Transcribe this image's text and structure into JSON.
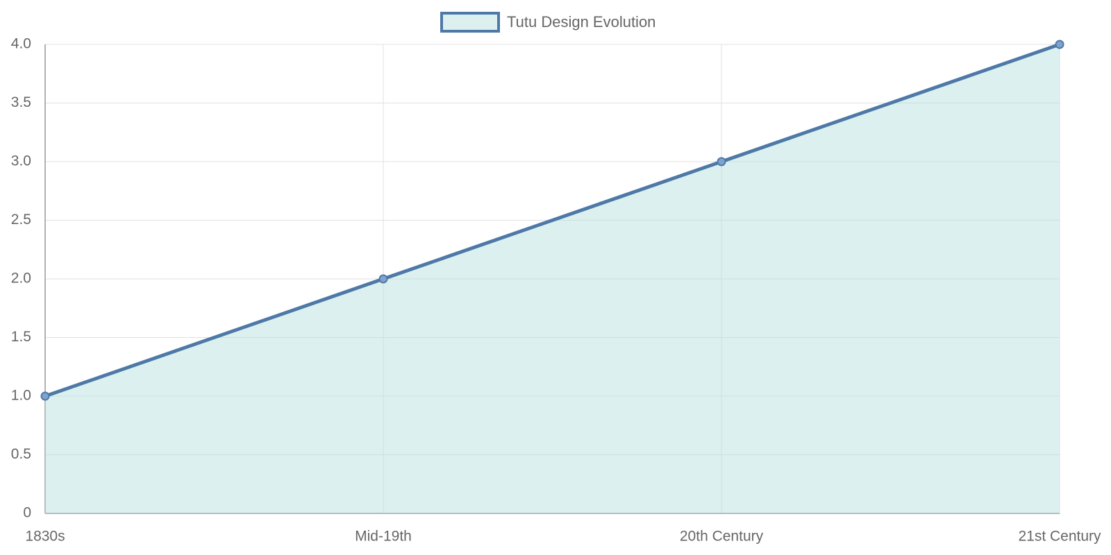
{
  "chart_data": {
    "type": "line",
    "categories": [
      "1830s",
      "Mid-19th",
      "20th Century",
      "21st Century"
    ],
    "series": [
      {
        "name": "Tutu Design Evolution",
        "color": "#4e79a7",
        "fill": "rgba(178,223,219,0.45)",
        "values": [
          1,
          2,
          3,
          4
        ]
      }
    ],
    "ylim": [
      0,
      4
    ],
    "yticks": [
      0,
      0.5,
      {
        "value": 1,
        "label": "1.0"
      },
      1.5,
      {
        "value": 2,
        "label": "2.0"
      },
      2.5,
      {
        "value": 3,
        "label": "3.0"
      },
      3.5,
      {
        "value": 4,
        "label": "4.0"
      }
    ],
    "grid": true,
    "legend": "top"
  }
}
